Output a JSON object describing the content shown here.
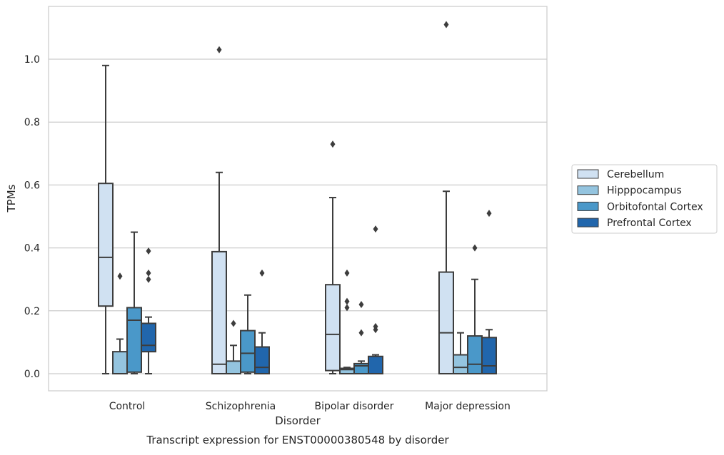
{
  "chart_data": {
    "type": "box",
    "title": "",
    "caption": "Transcript expression for ENST00000380548 by disorder",
    "xlabel": "Disorder",
    "ylabel": "TPMs",
    "ylim": [
      -0.055,
      1.175
    ],
    "yticks": [
      0.0,
      0.2,
      0.4,
      0.6,
      0.8,
      1.0
    ],
    "ytick_labels": [
      "0.0",
      "0.2",
      "0.4",
      "0.6",
      "0.8",
      "1.0"
    ],
    "grid": "horizontal",
    "legend_position": "right",
    "categories": [
      "Control",
      "Schizophrenia",
      "Bipolar disorder",
      "Major depression"
    ],
    "series": [
      {
        "name": "Cerebellum",
        "color": "#d0e1f2",
        "boxes": [
          {
            "whislo": 0.0,
            "q1": 0.215,
            "med": 0.37,
            "q3": 0.605,
            "whishi": 0.98,
            "fliers": []
          },
          {
            "whislo": 0.0,
            "q1": 0.0,
            "med": 0.03,
            "q3": 0.388,
            "whishi": 0.64,
            "fliers": [
              1.03
            ]
          },
          {
            "whislo": 0.0,
            "q1": 0.01,
            "med": 0.125,
            "q3": 0.283,
            "whishi": 0.56,
            "fliers": [
              0.73
            ]
          },
          {
            "whislo": 0.0,
            "q1": 0.0,
            "med": 0.13,
            "q3": 0.323,
            "whishi": 0.58,
            "fliers": [
              1.11
            ]
          }
        ]
      },
      {
        "name": "Hipppocampus",
        "color": "#94c4df",
        "boxes": [
          {
            "whislo": 0.0,
            "q1": 0.0,
            "med": 0.0,
            "q3": 0.07,
            "whishi": 0.11,
            "fliers": [
              0.31
            ]
          },
          {
            "whislo": 0.0,
            "q1": 0.0,
            "med": 0.0,
            "q3": 0.04,
            "whishi": 0.09,
            "fliers": [
              0.16
            ]
          },
          {
            "whislo": 0.0,
            "q1": 0.0,
            "med": 0.013,
            "q3": 0.017,
            "whishi": 0.02,
            "fliers": [
              0.21,
              0.23,
              0.32
            ]
          },
          {
            "whislo": 0.0,
            "q1": 0.0,
            "med": 0.02,
            "q3": 0.06,
            "whishi": 0.13,
            "fliers": []
          }
        ]
      },
      {
        "name": "Orbitofontal Cortex",
        "color": "#4a98c9",
        "boxes": [
          {
            "whislo": 0.0,
            "q1": 0.005,
            "med": 0.17,
            "q3": 0.21,
            "whishi": 0.45,
            "fliers": []
          },
          {
            "whislo": 0.0,
            "q1": 0.005,
            "med": 0.065,
            "q3": 0.137,
            "whishi": 0.25,
            "fliers": []
          },
          {
            "whislo": 0.0,
            "q1": 0.0,
            "med": 0.025,
            "q3": 0.032,
            "whishi": 0.04,
            "fliers": [
              0.13,
              0.22
            ]
          },
          {
            "whislo": 0.0,
            "q1": 0.0,
            "med": 0.03,
            "q3": 0.12,
            "whishi": 0.3,
            "fliers": [
              0.4
            ]
          }
        ]
      },
      {
        "name": "Prefrontal Cortex",
        "color": "#2166ac",
        "boxes": [
          {
            "whislo": 0.0,
            "q1": 0.07,
            "med": 0.09,
            "q3": 0.16,
            "whishi": 0.18,
            "fliers": [
              0.3,
              0.32,
              0.39
            ]
          },
          {
            "whislo": 0.0,
            "q1": 0.0,
            "med": 0.02,
            "q3": 0.085,
            "whishi": 0.13,
            "fliers": [
              0.32
            ]
          },
          {
            "whislo": 0.0,
            "q1": 0.0,
            "med": 0.0,
            "q3": 0.055,
            "whishi": 0.06,
            "fliers": [
              0.14,
              0.15,
              0.46
            ]
          },
          {
            "whislo": 0.0,
            "q1": 0.0,
            "med": 0.025,
            "q3": 0.115,
            "whishi": 0.14,
            "fliers": [
              0.51
            ]
          }
        ]
      }
    ]
  }
}
